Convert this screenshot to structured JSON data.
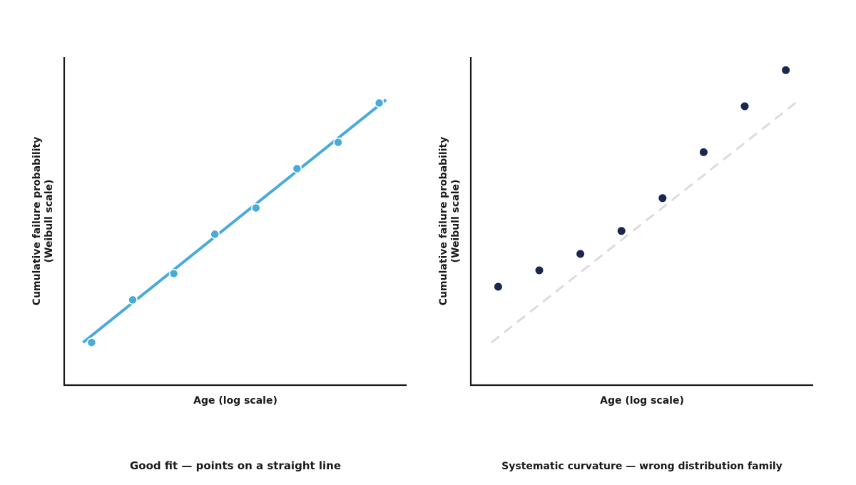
{
  "chart_data": [
    {
      "type": "scatter",
      "title": "Good fit — points on a straight line",
      "xlabel": "Age (log scale)",
      "ylabel_line1": "Cumulative failure probability",
      "ylabel_line2": "(Weibull scale)",
      "xlim": [
        0,
        10
      ],
      "ylim": [
        0,
        10
      ],
      "grid": false,
      "series": [
        {
          "x": [
            0.8,
            2.0,
            3.2,
            4.4,
            5.6,
            6.8,
            8.0,
            9.2
          ],
          "y": [
            1.3,
            2.6,
            3.4,
            4.6,
            5.4,
            6.6,
            7.4,
            8.6
          ]
        }
      ],
      "fit_line": {
        "x": [
          0.55,
          9.4
        ],
        "y": [
          1.3,
          8.7
        ]
      },
      "colors": {
        "points": "#4aabdb",
        "fit_line": "#4aabdb",
        "point_stroke": "#ffffff"
      }
    },
    {
      "type": "scatter",
      "title": "Systematic curvature — wrong distribution family",
      "xlabel": "Age (log scale)",
      "ylabel_line1": "Cumulative failure probability",
      "ylabel_line2": "(Weibull scale)",
      "xlim": [
        0,
        10
      ],
      "ylim": [
        0,
        10
      ],
      "grid": false,
      "series": [
        {
          "x": [
            0.8,
            2.0,
            3.2,
            4.4,
            5.6,
            6.8,
            8.0,
            9.2
          ],
          "y": [
            3.0,
            3.5,
            4.0,
            4.7,
            5.7,
            7.1,
            8.5,
            9.6
          ]
        }
      ],
      "reference_line": {
        "x": [
          0.6,
          9.6
        ],
        "y": [
          1.3,
          8.7
        ]
      },
      "colors": {
        "points": "#1a2750",
        "reference_line": "#dcdcdc"
      }
    }
  ]
}
